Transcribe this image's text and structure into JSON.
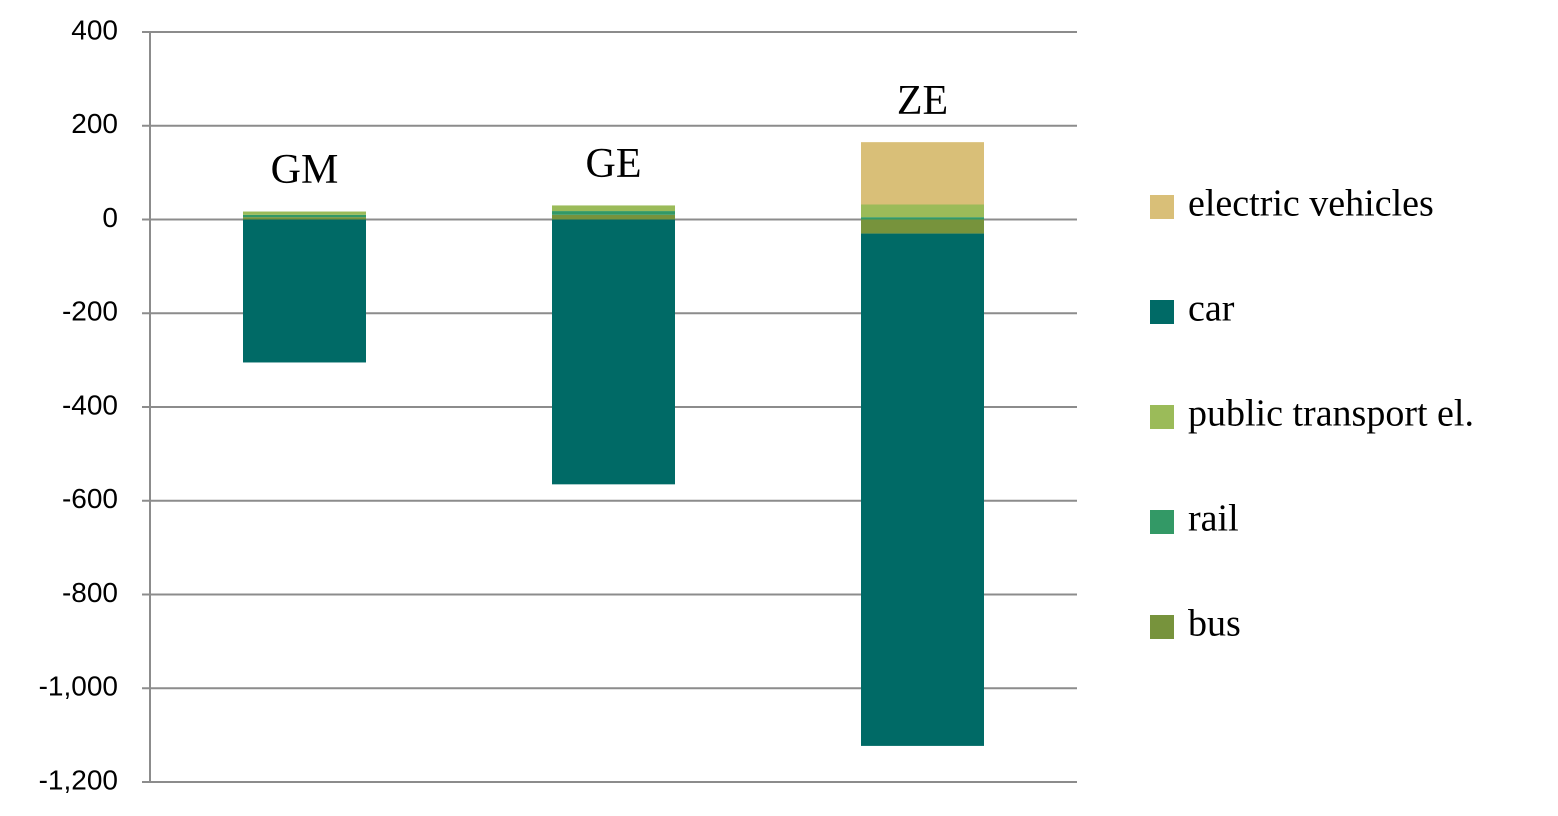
{
  "chart_data": {
    "type": "stacked_bar",
    "categories": [
      "GM",
      "GE",
      "ZE"
    ],
    "series": [
      {
        "name": "bus",
        "color": "#77933c",
        "values": [
          5,
          10,
          -30
        ]
      },
      {
        "name": "rail",
        "color": "#339966",
        "values": [
          5,
          8,
          5
        ]
      },
      {
        "name": "public transport el.",
        "color": "#9bbb59",
        "values": [
          7,
          12,
          27
        ]
      },
      {
        "name": "car",
        "color": "#006a66",
        "values": [
          -305,
          -565,
          -1093
        ]
      },
      {
        "name": "electric vehicles",
        "color": "#d9bf78",
        "values": [
          0,
          0,
          133
        ]
      }
    ],
    "ylim": [
      -1200,
      400
    ],
    "yticks": [
      {
        "value": -1200,
        "label": "-1,200"
      },
      {
        "value": -1000,
        "label": "-1,000"
      },
      -800,
      -600,
      -400,
      -200,
      0,
      200,
      400
    ],
    "grid": true,
    "legend": "right"
  }
}
